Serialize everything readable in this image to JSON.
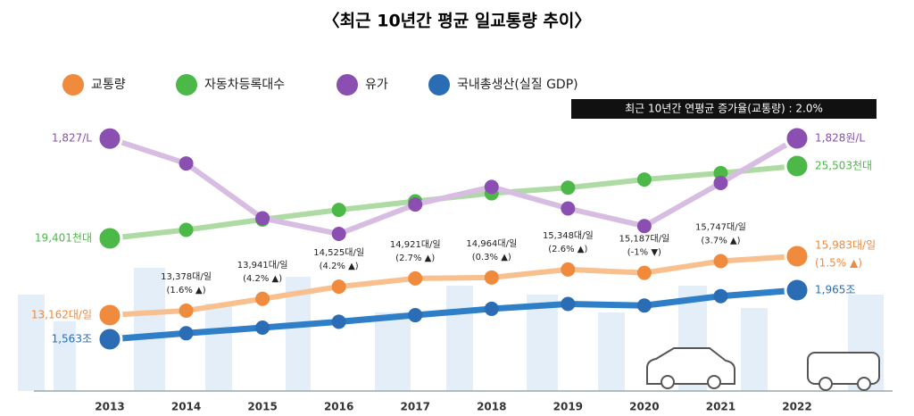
{
  "chart_data": {
    "type": "line",
    "title": "〈최근 10년간 평균 일교통량 추이〉",
    "annotation": "최근 10년간 연평균 증가율(교통량) : 2.0%",
    "categories": [
      "2013",
      "2014",
      "2015",
      "2016",
      "2017",
      "2018",
      "2019",
      "2020",
      "2021",
      "2022"
    ],
    "series": [
      {
        "name": "교통량",
        "color": "#f08a3c",
        "values": [
          13162,
          13378,
          13941,
          14525,
          14921,
          14964,
          15348,
          15187,
          15747,
          15983
        ],
        "value_labels": [
          "13,162대/일",
          "13,378대/일",
          "13,941대/일",
          "14,525대/일",
          "14,921대/일",
          "14,964대/일",
          "15,348대/일",
          "15,187대/일",
          "15,747대/일",
          "15,983대/일"
        ],
        "change_labels": [
          null,
          "(1.6% ▲)",
          "(4.2% ▲)",
          "(4.2% ▲)",
          "(2.7% ▲)",
          "(0.3% ▲)",
          "(2.6% ▲)",
          "(-1% ▼)",
          "(3.7% ▲)",
          "(1.5% ▲)"
        ]
      },
      {
        "name": "자동차등록대수",
        "color": "#4cb848",
        "values": [
          19401,
          20118,
          20990,
          21803,
          22528,
          23203,
          23677,
          24366,
          24911,
          25503
        ],
        "value_labels": [
          "19,401천대",
          null,
          null,
          null,
          null,
          null,
          null,
          null,
          null,
          "25,503천대"
        ]
      },
      {
        "name": "유가",
        "color": "#8a4fb0",
        "values": [
          1827,
          1700,
          1420,
          1340,
          1490,
          1580,
          1470,
          1380,
          1600,
          1828
        ],
        "value_labels": [
          "1,827/L",
          null,
          null,
          null,
          null,
          null,
          null,
          null,
          null,
          "1,828원/L"
        ]
      },
      {
        "name": "국내총생산(실질 GDP)",
        "color": "#2a6db5",
        "values": [
          1563,
          1612,
          1658,
          1706,
          1760,
          1812,
          1852,
          1839,
          1916,
          1965
        ],
        "value_labels": [
          "1,563조",
          null,
          null,
          null,
          null,
          null,
          null,
          null,
          null,
          "1,965조"
        ]
      }
    ]
  }
}
